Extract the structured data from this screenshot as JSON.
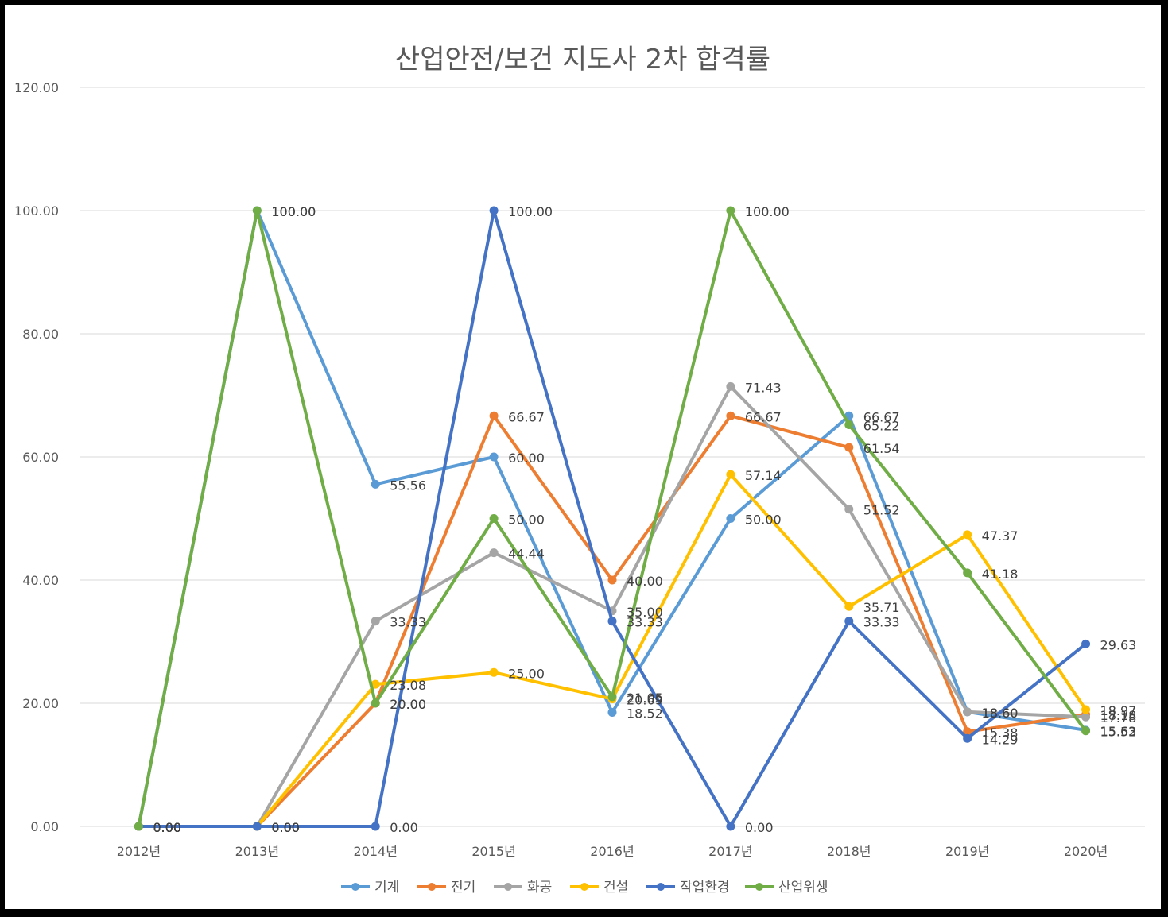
{
  "chart_data": {
    "type": "line",
    "title": "산업안전/보건 지도사 2차 합격률",
    "xlabel": "",
    "ylabel": "",
    "ylim": [
      0,
      120
    ],
    "yticks": [
      "0.00",
      "20.00",
      "40.00",
      "60.00",
      "80.00",
      "100.00",
      "120.00"
    ],
    "ytick_values": [
      0,
      20,
      40,
      60,
      80,
      100,
      120
    ],
    "categories": [
      "2012년",
      "2013년",
      "2014년",
      "2015년",
      "2016년",
      "2017년",
      "2018년",
      "2019년",
      "2020년"
    ],
    "legend_position": "bottom",
    "grid": true,
    "series": [
      {
        "name": "기계",
        "color": "#5b9bd5",
        "values": [
          0,
          100,
          55.56,
          60,
          18.52,
          50,
          66.67,
          18.6,
          15.63
        ]
      },
      {
        "name": "전기",
        "color": "#ed7d31",
        "values": [
          0,
          0,
          20,
          66.67,
          40,
          66.67,
          61.54,
          15.38,
          18.18
        ]
      },
      {
        "name": "화공",
        "color": "#a5a5a5",
        "values": [
          0,
          0,
          33.33,
          44.44,
          35,
          71.43,
          51.52,
          18.6,
          17.78
        ]
      },
      {
        "name": "건설",
        "color": "#ffc000",
        "values": [
          0,
          0,
          23.08,
          25,
          20.69,
          57.14,
          35.71,
          47.37,
          18.97
        ]
      },
      {
        "name": "작업환경",
        "color": "#4472c4",
        "values": [
          0,
          0,
          0,
          100,
          33.33,
          0,
          33.33,
          14.29,
          29.63
        ]
      },
      {
        "name": "산업위생",
        "color": "#70ad47",
        "values": [
          0,
          100,
          20,
          50,
          21.05,
          100,
          65.22,
          41.18,
          15.52
        ]
      }
    ]
  }
}
